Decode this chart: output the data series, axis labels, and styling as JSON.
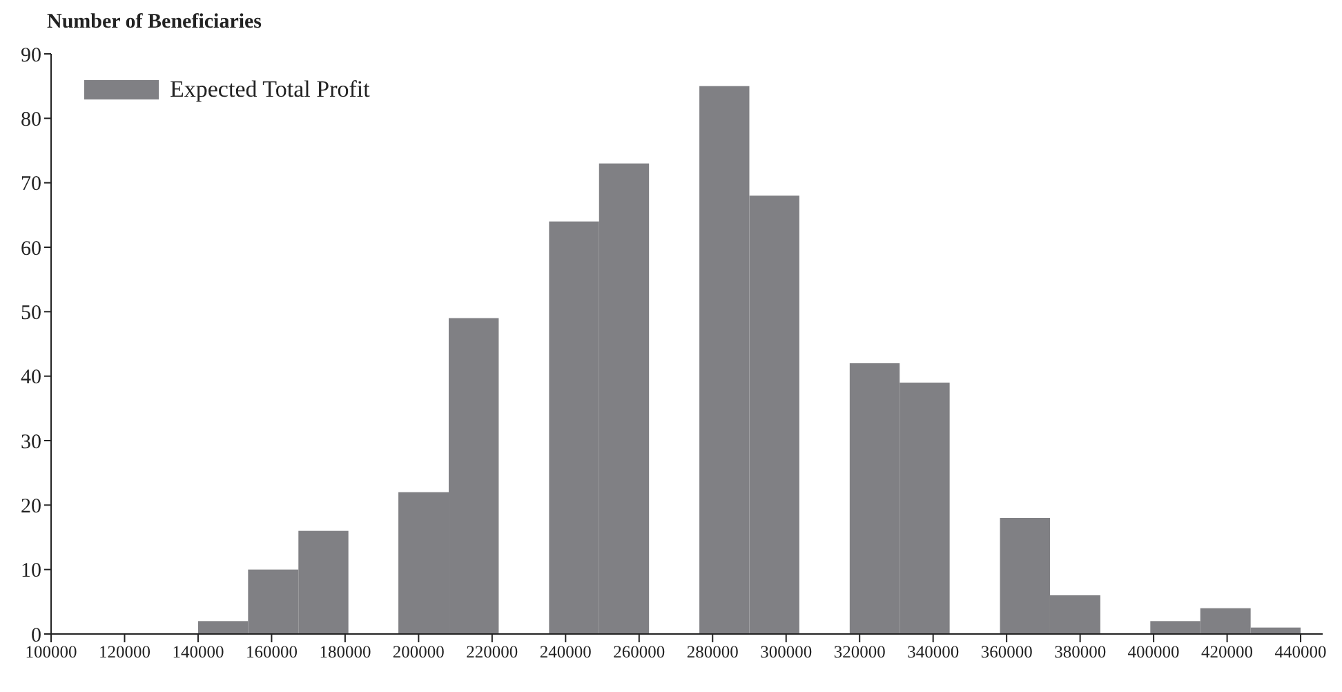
{
  "chart_data": {
    "type": "histogram",
    "ylabel": "Number of Beneficiaries",
    "bins": [
      140000,
      153600,
      167300,
      180900,
      194500,
      208200,
      221800,
      235500,
      249100,
      262700,
      276400,
      290000,
      303600,
      317300,
      330900,
      344500,
      358200,
      371800,
      385500,
      399100,
      412700,
      426400,
      440000
    ],
    "series": [
      {
        "name": "Expected Total Profit",
        "color": "#808084",
        "values": [
          2,
          10,
          16,
          0,
          22,
          49,
          0,
          64,
          73,
          0,
          85,
          68,
          0,
          42,
          39,
          0,
          18,
          6,
          0,
          2,
          4,
          1
        ]
      }
    ],
    "xlim": [
      100000,
      446000
    ],
    "xticks": [
      100000,
      120000,
      140000,
      160000,
      180000,
      200000,
      220000,
      240000,
      260000,
      280000,
      300000,
      320000,
      340000,
      360000,
      380000,
      400000,
      420000,
      440000
    ],
    "ylim": [
      0,
      90
    ],
    "yticks": [
      0,
      10,
      20,
      30,
      40,
      50,
      60,
      70,
      80,
      90
    ],
    "grid": false,
    "legend": "top left"
  }
}
